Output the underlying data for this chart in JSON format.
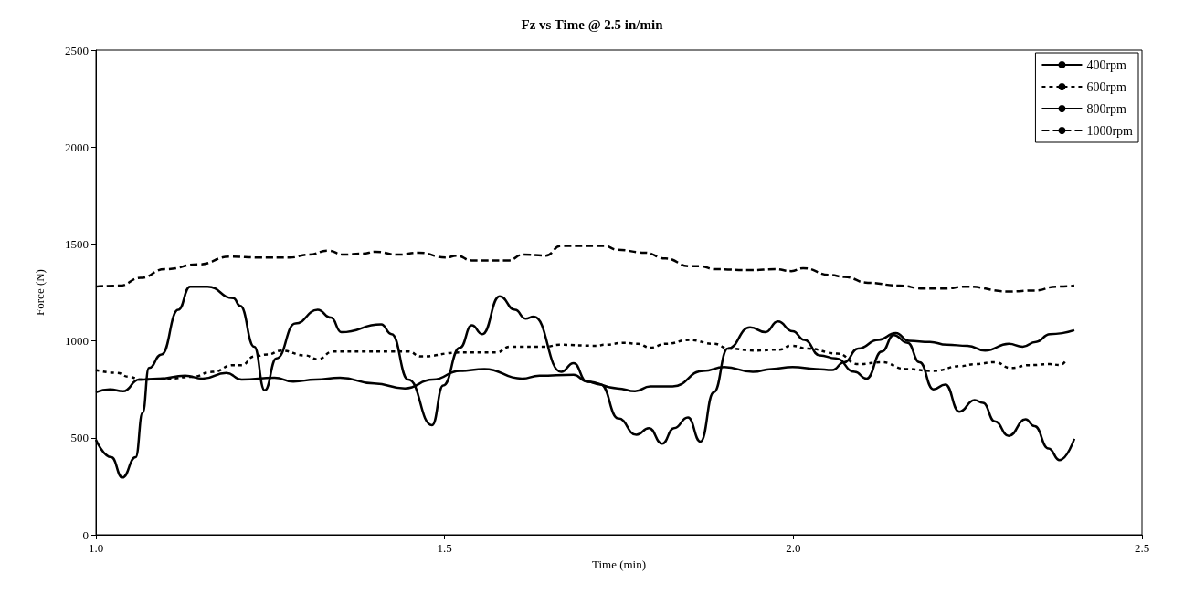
{
  "chart_data": {
    "type": "line",
    "title": "Fz vs Time @ 2.5 in/min",
    "xlabel": "Time (min)",
    "ylabel": "Force (N)",
    "xlim": [
      1,
      2.5
    ],
    "xticks": [
      {
        "value": 1,
        "label": "1.0"
      },
      {
        "value": 1.5,
        "label": "1.5"
      },
      {
        "value": 2,
        "label": "2.0"
      },
      {
        "value": 2.5,
        "label": "2.5"
      }
    ],
    "ylim": [
      0,
      2500
    ],
    "yticks": [
      0,
      500,
      1000,
      1500,
      2000,
      2500
    ],
    "grid": false,
    "legend": "top right",
    "marker": "none",
    "series": [
      {
        "name": "400rpm",
        "color": "#000000",
        "line_style": "solid",
        "x": [
          1.0,
          1.022,
          1.038,
          1.057,
          1.067,
          1.076,
          1.094,
          1.118,
          1.135,
          1.16,
          1.197,
          1.207,
          1.227,
          1.242,
          1.259,
          1.286,
          1.318,
          1.337,
          1.352,
          1.409,
          1.424,
          1.448,
          1.482,
          1.498,
          1.522,
          1.539,
          1.554,
          1.579,
          1.601,
          1.616,
          1.628,
          1.667,
          1.685,
          1.704,
          1.724,
          1.749,
          1.775,
          1.793,
          1.812,
          1.829,
          1.849,
          1.867,
          1.886,
          1.906,
          1.938,
          1.96,
          1.978,
          1.999,
          2.016,
          2.038,
          2.061,
          2.088,
          2.105,
          2.127,
          2.144,
          2.164,
          2.181,
          2.201,
          2.218,
          2.238,
          2.26,
          2.272,
          2.289,
          2.309,
          2.333,
          2.346,
          2.366,
          2.382,
          2.403
        ],
        "values": [
          490,
          400,
          295,
          400,
          630,
          860,
          930,
          1160,
          1280,
          1280,
          1220,
          1180,
          970,
          745,
          910,
          1090,
          1160,
          1120,
          1045,
          1085,
          1035,
          800,
          565,
          770,
          965,
          1080,
          1035,
          1230,
          1160,
          1115,
          1125,
          840,
          885,
          790,
          775,
          600,
          515,
          550,
          470,
          550,
          605,
          480,
          735,
          960,
          1070,
          1045,
          1100,
          1050,
          1005,
          925,
          910,
          840,
          805,
          945,
          1030,
          990,
          890,
          750,
          775,
          635,
          695,
          680,
          585,
          510,
          595,
          560,
          445,
          385,
          495
        ]
      },
      {
        "name": "600rpm",
        "color": "#000000",
        "line_style": "dotted",
        "x": [
          1.0,
          1.03,
          1.047,
          1.064,
          1.103,
          1.138,
          1.167,
          1.197,
          1.209,
          1.227,
          1.246,
          1.266,
          1.3,
          1.318,
          1.34,
          1.424,
          1.448,
          1.466,
          1.522,
          1.574,
          1.594,
          1.645,
          1.665,
          1.719,
          1.729,
          1.758,
          1.777,
          1.795,
          1.817,
          1.851,
          1.886,
          1.908,
          1.945,
          1.98,
          1.997,
          2.021,
          2.063,
          2.093,
          2.127,
          2.161,
          2.201,
          2.24,
          2.26,
          2.289,
          2.312,
          2.339,
          2.368,
          2.383,
          2.39
        ],
        "values": [
          850,
          835,
          815,
          800,
          805,
          815,
          840,
          875,
          875,
          920,
          930,
          950,
          925,
          905,
          945,
          945,
          945,
          920,
          940,
          940,
          970,
          970,
          980,
          975,
          980,
          990,
          985,
          965,
          985,
          1005,
          985,
          960,
          950,
          955,
          975,
          960,
          935,
          880,
          890,
          855,
          845,
          870,
          880,
          890,
          860,
          875,
          880,
          875,
          895
        ]
      },
      {
        "name": "800rpm",
        "color": "#000000",
        "line_style": "solid",
        "x": [
          1.0,
          1.02,
          1.039,
          1.062,
          1.089,
          1.128,
          1.153,
          1.187,
          1.209,
          1.256,
          1.283,
          1.315,
          1.35,
          1.399,
          1.443,
          1.483,
          1.522,
          1.557,
          1.611,
          1.636,
          1.685,
          1.704,
          1.748,
          1.773,
          1.795,
          1.827,
          1.871,
          1.901,
          1.942,
          1.969,
          1.999,
          2.033,
          2.056,
          2.073,
          2.093,
          2.122,
          2.147,
          2.166,
          2.196,
          2.22,
          2.25,
          2.275,
          2.309,
          2.329,
          2.348,
          2.368,
          2.403
        ],
        "values": [
          735,
          750,
          740,
          800,
          805,
          820,
          805,
          835,
          800,
          810,
          790,
          800,
          810,
          780,
          755,
          800,
          845,
          855,
          805,
          820,
          825,
          790,
          755,
          740,
          765,
          765,
          845,
          865,
          840,
          855,
          865,
          855,
          850,
          890,
          960,
          1005,
          1040,
          1000,
          995,
          980,
          975,
          950,
          985,
          970,
          995,
          1035,
          1055
        ]
      },
      {
        "name": "1000rpm",
        "color": "#000000",
        "line_style": "dashed",
        "x": [
          1.0,
          1.034,
          1.064,
          1.099,
          1.148,
          1.192,
          1.236,
          1.278,
          1.305,
          1.333,
          1.355,
          1.382,
          1.401,
          1.433,
          1.463,
          1.502,
          1.517,
          1.539,
          1.591,
          1.613,
          1.645,
          1.667,
          1.729,
          1.748,
          1.787,
          1.817,
          1.851,
          1.866,
          1.888,
          1.94,
          1.974,
          1.997,
          2.014,
          2.053,
          2.073,
          2.107,
          2.152,
          2.186,
          2.216,
          2.248,
          2.309,
          2.346,
          2.378,
          2.403
        ],
        "values": [
          1280,
          1285,
          1325,
          1370,
          1395,
          1435,
          1430,
          1430,
          1445,
          1465,
          1445,
          1450,
          1460,
          1445,
          1455,
          1430,
          1440,
          1415,
          1415,
          1445,
          1440,
          1490,
          1490,
          1470,
          1455,
          1425,
          1385,
          1385,
          1370,
          1365,
          1370,
          1360,
          1375,
          1340,
          1330,
          1300,
          1285,
          1270,
          1270,
          1280,
          1255,
          1260,
          1280,
          1285
        ]
      }
    ]
  }
}
